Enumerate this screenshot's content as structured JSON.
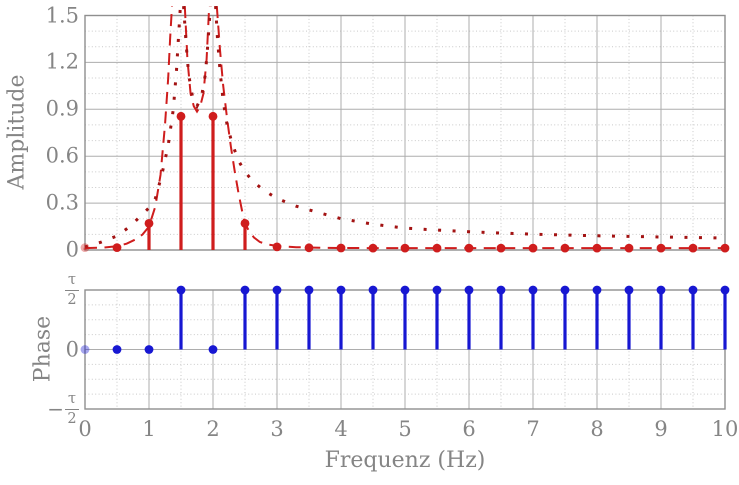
{
  "figure": {
    "background": "#ffffff",
    "xlabel": "Frequenz (Hz)",
    "x_ticks": [
      0,
      1,
      2,
      3,
      4,
      5,
      6,
      7,
      8,
      9,
      10
    ],
    "x_minor_step": 0.5,
    "xlim": [
      0,
      10
    ]
  },
  "colors": {
    "stem_red": "#cf1d1d",
    "dashed_red": "#cf1d1d",
    "dotted_dark_red": "#a31313",
    "stem_blue": "#1717d2",
    "grid_major": "#adadad",
    "grid_minor": "#c9c9c9",
    "axis_border": "#8f8f8f",
    "text_gray": "#858585"
  },
  "labels": {
    "amplitude_axis": "Amplitude",
    "phase_axis": "Phase",
    "frequency_axis": "Frequenz (Hz)"
  },
  "chart_data": [
    {
      "type": "stem",
      "name": "amplitude-spectrum",
      "ylabel": "Amplitude",
      "xlabel": "Frequenz (Hz)",
      "xlim": [
        0,
        10
      ],
      "ylim": [
        0,
        1.5
      ],
      "y_ticks": [
        0,
        0.3,
        0.6,
        0.9,
        1.2,
        1.5
      ],
      "y_tick_labels": [
        "0",
        "0.3",
        "0.6",
        "0.9",
        "1.2",
        "1.5"
      ],
      "y_minor_step": 0.1,
      "grid": true,
      "stem_x": [
        0,
        0.5,
        1,
        1.5,
        2,
        2.5,
        3,
        3.5,
        4,
        4.5,
        5,
        5.5,
        6,
        6.5,
        7,
        7.5,
        8,
        8.5,
        9,
        9.5,
        10
      ],
      "stem_values": [
        0.015,
        0.015,
        0.17,
        0.855,
        0.855,
        0.17,
        0.02,
        0.014,
        0.013,
        0.012,
        0.012,
        0.012,
        0.012,
        0.012,
        0.012,
        0.012,
        0.012,
        0.012,
        0.012,
        0.012,
        0.012
      ],
      "first_marker_faded": true,
      "series": [
        {
          "name": "dashed-envelope",
          "style": "dashed",
          "color": "#cf1d1d",
          "clip_value": 1.56,
          "branches": [
            [
              [
                0,
                0.012
              ],
              [
                0.3,
                0.016
              ],
              [
                0.5,
                0.024
              ],
              [
                0.65,
                0.04
              ],
              [
                0.8,
                0.07
              ],
              [
                0.9,
                0.1
              ],
              [
                1.0,
                0.15
              ],
              [
                1.1,
                0.28
              ],
              [
                1.18,
                0.48
              ],
              [
                1.25,
                0.8
              ],
              [
                1.3,
                1.1
              ],
              [
                1.33,
                1.35
              ],
              [
                1.36,
                1.56
              ]
            ],
            [
              [
                1.56,
                1.56
              ],
              [
                1.6,
                1.22
              ],
              [
                1.65,
                1.0
              ],
              [
                1.7,
                0.92
              ],
              [
                1.75,
                0.885
              ],
              [
                1.8,
                0.92
              ],
              [
                1.85,
                1.0
              ],
              [
                1.9,
                1.22
              ],
              [
                1.94,
                1.56
              ]
            ],
            [
              [
                2.06,
                1.56
              ],
              [
                2.11,
                1.28
              ],
              [
                2.16,
                1.05
              ],
              [
                2.22,
                0.84
              ],
              [
                2.28,
                0.66
              ],
              [
                2.34,
                0.5
              ],
              [
                2.4,
                0.36
              ],
              [
                2.46,
                0.24
              ],
              [
                2.5,
                0.17
              ],
              [
                2.57,
                0.115
              ],
              [
                2.64,
                0.08
              ],
              [
                2.73,
                0.052
              ],
              [
                2.85,
                0.035
              ],
              [
                3.0,
                0.026
              ],
              [
                3.3,
                0.018
              ],
              [
                3.7,
                0.014
              ],
              [
                4.0,
                0.013
              ],
              [
                4.5,
                0.012
              ],
              [
                5.0,
                0.012
              ],
              [
                6.0,
                0.012
              ],
              [
                7.0,
                0.012
              ],
              [
                8.0,
                0.012
              ],
              [
                9.0,
                0.012
              ],
              [
                10.0,
                0.012
              ]
            ]
          ]
        },
        {
          "name": "dotted-envelope",
          "style": "dotted",
          "color": "#a31313",
          "clip_value": 1.56,
          "branches": [
            [
              [
                0,
                0.02
              ],
              [
                0.25,
                0.05
              ],
              [
                0.5,
                0.09
              ],
              [
                0.7,
                0.15
              ],
              [
                0.85,
                0.21
              ],
              [
                1.0,
                0.27
              ],
              [
                1.1,
                0.33
              ],
              [
                1.2,
                0.48
              ],
              [
                1.3,
                0.67
              ],
              [
                1.38,
                0.9
              ],
              [
                1.43,
                1.15
              ],
              [
                1.46,
                1.35
              ],
              [
                1.49,
                1.56
              ]
            ],
            [
              [
                1.54,
                1.56
              ],
              [
                1.58,
                1.32
              ],
              [
                1.62,
                1.12
              ],
              [
                1.68,
                0.98
              ],
              [
                1.75,
                0.92
              ],
              [
                1.82,
                0.98
              ],
              [
                1.88,
                1.12
              ],
              [
                1.92,
                1.32
              ],
              [
                1.96,
                1.56
              ]
            ],
            [
              [
                2.04,
                1.56
              ],
              [
                2.07,
                1.35
              ],
              [
                2.11,
                1.15
              ],
              [
                2.16,
                0.95
              ],
              [
                2.22,
                0.8
              ],
              [
                2.3,
                0.68
              ],
              [
                2.4,
                0.57
              ],
              [
                2.5,
                0.5
              ],
              [
                2.62,
                0.44
              ],
              [
                2.8,
                0.38
              ],
              [
                3.0,
                0.33
              ],
              [
                3.3,
                0.28
              ],
              [
                3.6,
                0.245
              ],
              [
                4.0,
                0.2
              ],
              [
                4.5,
                0.165
              ],
              [
                5.0,
                0.14
              ],
              [
                5.5,
                0.127
              ],
              [
                6.0,
                0.117
              ],
              [
                6.5,
                0.108
              ],
              [
                7.0,
                0.101
              ],
              [
                7.5,
                0.096
              ],
              [
                8.0,
                0.091
              ],
              [
                8.5,
                0.087
              ],
              [
                9.0,
                0.083
              ],
              [
                9.5,
                0.08
              ],
              [
                10.0,
                0.077
              ]
            ]
          ]
        }
      ]
    },
    {
      "type": "stem",
      "name": "phase-spectrum",
      "ylabel": "Phase",
      "xlabel": "Frequenz (Hz)",
      "xlim": [
        0,
        10
      ],
      "ylim_tau": [
        -0.5,
        0.5
      ],
      "y_ticks": [
        -0.5,
        0,
        0.5
      ],
      "y_tick_labels": [
        {
          "sign": "−",
          "num": "τ",
          "den": "2"
        },
        {
          "plain": "0"
        },
        {
          "num": "τ",
          "den": "2"
        }
      ],
      "y_minor_step": 0.125,
      "grid": true,
      "stem_x": [
        0,
        0.5,
        1,
        1.5,
        2,
        2.5,
        3,
        3.5,
        4,
        4.5,
        5,
        5.5,
        6,
        6.5,
        7,
        7.5,
        8,
        8.5,
        9,
        9.5,
        10
      ],
      "stem_values": [
        0,
        0,
        0,
        0.5,
        0,
        0.5,
        0.5,
        0.5,
        0.5,
        0.5,
        0.5,
        0.5,
        0.5,
        0.5,
        0.5,
        0.5,
        0.5,
        0.5,
        0.5,
        0.5,
        0.5
      ],
      "first_marker_faded": true
    }
  ]
}
